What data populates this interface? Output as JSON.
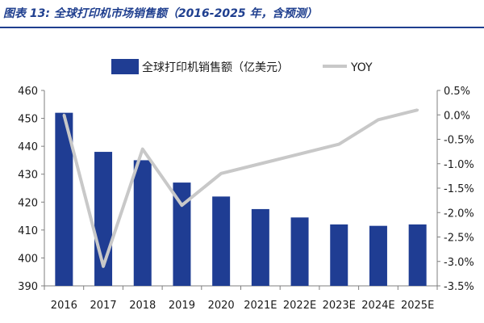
{
  "figure_title": "图表 13: 全球打印机市场销售额（2016-2025 年，含预测）",
  "colors": {
    "bar": "#1f3d93",
    "line": "#c8c8c8",
    "title": "#1f3f8f"
  },
  "chart_data": {
    "type": "bar+line",
    "categories": [
      "2016",
      "2017",
      "2018",
      "2019",
      "2020",
      "2021E",
      "2022E",
      "2023E",
      "2024E",
      "2025E"
    ],
    "series": [
      {
        "name": "全球打印机销售额（亿美元）",
        "type": "bar",
        "axis": "left",
        "values": [
          452,
          438,
          435,
          427,
          422,
          417.5,
          414.5,
          412,
          411.5,
          412
        ]
      },
      {
        "name": "YOY",
        "type": "line",
        "axis": "right",
        "values": [
          0.0,
          -3.1,
          -0.7,
          -1.85,
          -1.2,
          -1.0,
          -0.8,
          -0.6,
          -0.1,
          0.1
        ]
      }
    ],
    "y_left": {
      "min": 390,
      "max": 460,
      "ticks": [
        "390",
        "400",
        "410",
        "420",
        "430",
        "440",
        "450",
        "460"
      ]
    },
    "y_right": {
      "min": -3.5,
      "max": 0.5,
      "ticks": [
        "-3.5%",
        "-3.0%",
        "-2.5%",
        "-2.0%",
        "-1.5%",
        "-1.0%",
        "-0.5%",
        "0.0%",
        "0.5%"
      ]
    },
    "legend": "top",
    "grid": false
  }
}
